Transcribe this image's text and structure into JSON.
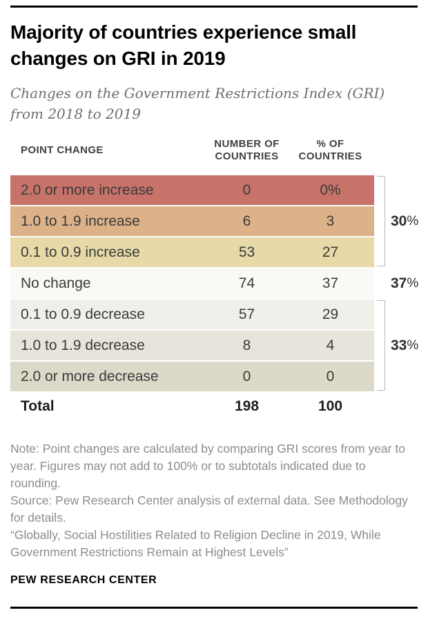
{
  "chart_data": {
    "type": "table",
    "title": "Majority of countries experience small changes on GRI in 2019",
    "subtitle": "Changes on the Government Restrictions Index (GRI) from 2018 to 2019",
    "columns": [
      "POINT CHANGE",
      "NUMBER OF COUNTRIES",
      "% OF COUNTRIES"
    ],
    "rows": [
      {
        "label": "2.0 or more increase",
        "number": "0",
        "percent": "0%",
        "color": "#c7736a"
      },
      {
        "label": "1.0 to 1.9 increase",
        "number": "6",
        "percent": "3",
        "color": "#ddb289"
      },
      {
        "label": "0.1 to 0.9 increase",
        "number": "53",
        "percent": "27",
        "color": "#e7daa8"
      },
      {
        "label": "No change",
        "number": "74",
        "percent": "37",
        "color": "#faf9f5"
      },
      {
        "label": "0.1 to 0.9 decrease",
        "number": "57",
        "percent": "29",
        "color": "#f0efe9"
      },
      {
        "label": "1.0 to 1.9 decrease",
        "number": "8",
        "percent": "4",
        "color": "#e7e4db"
      },
      {
        "label": "2.0 or more decrease",
        "number": "0",
        "percent": "0",
        "color": "#dcd9c8"
      }
    ],
    "subtotals": [
      {
        "group": "increase",
        "number": "30",
        "sign": "%",
        "row_span": [
          1,
          3
        ]
      },
      {
        "group": "no-change",
        "number": "37",
        "sign": "%",
        "row_span": [
          4,
          4
        ]
      },
      {
        "group": "decrease",
        "number": "33",
        "sign": "%",
        "row_span": [
          5,
          7
        ]
      }
    ],
    "total": {
      "label": "Total",
      "number": "198",
      "percent": "100"
    }
  },
  "table_header": {
    "col1": "POINT CHANGE",
    "col2_line1": "NUMBER OF",
    "col2_line2": "COUNTRIES",
    "col3_line1": "% OF",
    "col3_line2": "COUNTRIES"
  },
  "notes": {
    "note": "Note: Point changes are calculated by comparing GRI scores from year to year. Figures may not add to 100% or to subtotals indicated due to rounding.",
    "source": "Source: Pew Research Center analysis of external data. See Methodology for details.",
    "report": "“Globally, Social Hostilities Related to Religion Decline in 2019, While Government Restrictions Remain at Highest Levels”"
  },
  "footer": {
    "brand": "PEW RESEARCH CENTER"
  },
  "colors": {
    "rule": "#000000",
    "bracket": "#b9b9b9",
    "body_text": "#3a3a3a",
    "note_text": "#8c8c8c",
    "subtitle_text": "#6e6e6e"
  }
}
